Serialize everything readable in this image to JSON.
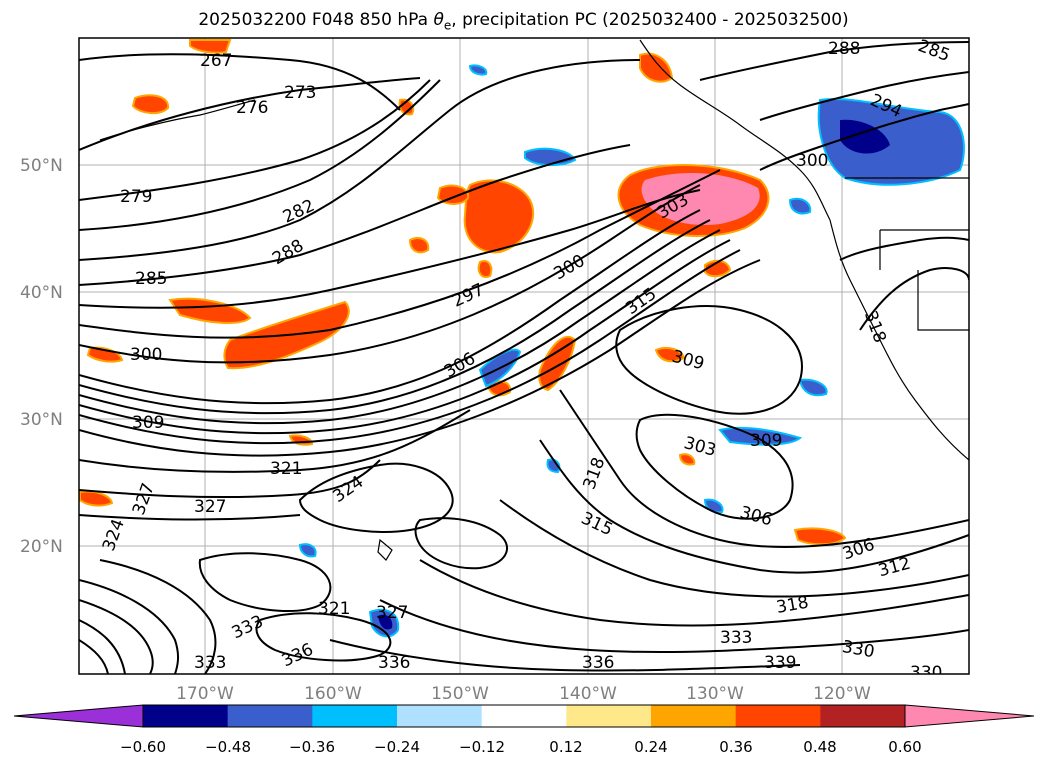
{
  "title_main": "2025032200 F048 850 hPa ",
  "title_theta": "θ",
  "title_sub": "e",
  "title_rest": ", precipitation PC (2025032400 - 2025032500)",
  "lat_labels": [
    "50°N",
    "40°N",
    "30°N",
    "20°N"
  ],
  "lon_labels": [
    "170°W",
    "160°W",
    "150°W",
    "140°W",
    "130°W",
    "120°W"
  ],
  "contour_labels": [
    "267",
    "276",
    "273",
    "279",
    "282",
    "288",
    "285",
    "297",
    "300",
    "300",
    "303",
    "300",
    "294",
    "288",
    "285",
    "315",
    "306",
    "309",
    "309",
    "303",
    "309",
    "318",
    "321",
    "324",
    "327",
    "327",
    "324",
    "315",
    "306",
    "306",
    "312",
    "318",
    "321",
    "333",
    "336",
    "333",
    "330",
    "339",
    "336",
    "333",
    "336",
    "330",
    "318",
    "327"
  ],
  "colorbar": {
    "ticks": [
      "−0.60",
      "−0.48",
      "−0.36",
      "−0.24",
      "−0.12",
      "0.12",
      "0.24",
      "0.36",
      "0.48",
      "0.60"
    ],
    "colors": [
      "#9b30d9",
      "#00008b",
      "#3a5fcd",
      "#00bfff",
      "#b0e0ff",
      "#ffffff",
      "#ffe88a",
      "#ffa500",
      "#ff4500",
      "#b22222",
      "#ff88b0"
    ]
  }
}
